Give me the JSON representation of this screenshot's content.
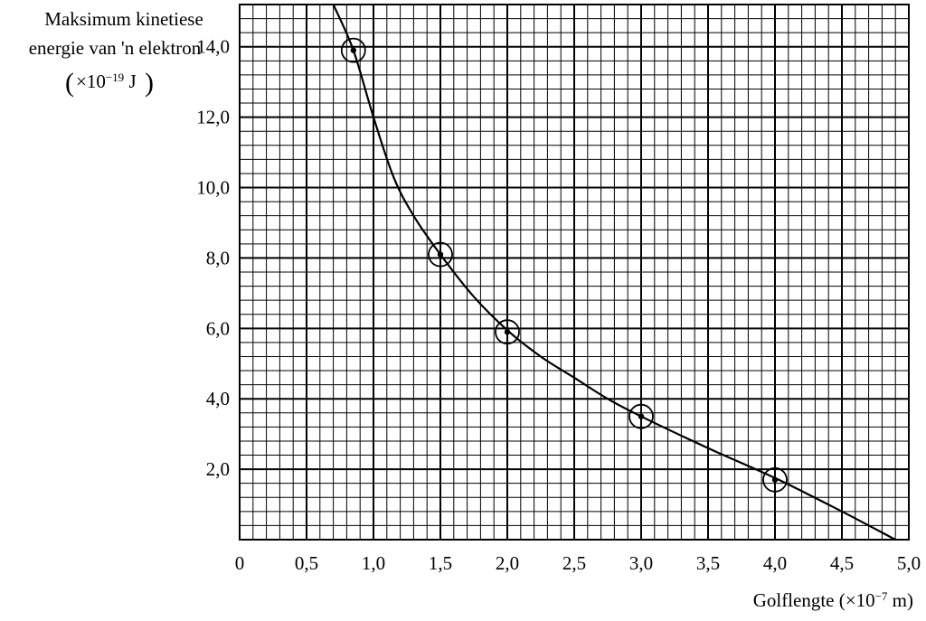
{
  "chart_data": {
    "type": "scatter",
    "ylabel_line1": "Maksimum kinetiese",
    "ylabel_line2": "energie van 'n elektron",
    "ylabel_unit_prefix": "×10",
    "ylabel_unit_exp": "−19",
    "ylabel_unit_suffix": " J",
    "xlabel_prefix": "Golflengte (×10",
    "xlabel_exp": "−7",
    "xlabel_suffix": " m)",
    "xlim": [
      0,
      5.0
    ],
    "ylim": [
      0,
      15.2
    ],
    "x_ticks": [
      {
        "value": 0,
        "label": "0"
      },
      {
        "value": 0.5,
        "label": "0,5"
      },
      {
        "value": 1.0,
        "label": "1,0"
      },
      {
        "value": 1.5,
        "label": "1,5"
      },
      {
        "value": 2.0,
        "label": "2,0"
      },
      {
        "value": 2.5,
        "label": "2,5"
      },
      {
        "value": 3.0,
        "label": "3,0"
      },
      {
        "value": 3.5,
        "label": "3,5"
      },
      {
        "value": 4.0,
        "label": "4,0"
      },
      {
        "value": 4.5,
        "label": "4,5"
      },
      {
        "value": 5.0,
        "label": "5,0"
      }
    ],
    "y_ticks": [
      {
        "value": 2,
        "label": "2,0"
      },
      {
        "value": 4,
        "label": "4,0"
      },
      {
        "value": 6,
        "label": "6,0"
      },
      {
        "value": 8,
        "label": "8,0"
      },
      {
        "value": 10,
        "label": "10,0"
      },
      {
        "value": 12,
        "label": "12,0"
      },
      {
        "value": 14,
        "label": "14,0"
      }
    ],
    "grid": {
      "minor_step_x": 0.1,
      "minor_step_y": 0.4,
      "major_step_x": 0.5,
      "major_step_y": 2.0,
      "shown": true
    },
    "points": [
      {
        "x": 0.85,
        "y": 13.9
      },
      {
        "x": 1.5,
        "y": 8.1
      },
      {
        "x": 2.0,
        "y": 5.9
      },
      {
        "x": 3.0,
        "y": 3.5
      },
      {
        "x": 4.0,
        "y": 1.7
      }
    ],
    "curve": [
      {
        "x": 0.7,
        "y": 15.2
      },
      {
        "x": 0.85,
        "y": 13.9
      },
      {
        "x": 1.0,
        "y": 12.0
      },
      {
        "x": 1.15,
        "y": 10.3
      },
      {
        "x": 1.3,
        "y": 9.2
      },
      {
        "x": 1.5,
        "y": 8.1
      },
      {
        "x": 1.75,
        "y": 6.9
      },
      {
        "x": 2.0,
        "y": 5.95
      },
      {
        "x": 2.25,
        "y": 5.2
      },
      {
        "x": 2.5,
        "y": 4.6
      },
      {
        "x": 2.75,
        "y": 4.0
      },
      {
        "x": 3.0,
        "y": 3.5
      },
      {
        "x": 3.5,
        "y": 2.6
      },
      {
        "x": 4.0,
        "y": 1.75
      },
      {
        "x": 4.5,
        "y": 0.8
      },
      {
        "x": 4.9,
        "y": 0.0
      }
    ],
    "colors": {
      "grid": "#000000",
      "curve": "#000000",
      "points": "#000000"
    }
  }
}
